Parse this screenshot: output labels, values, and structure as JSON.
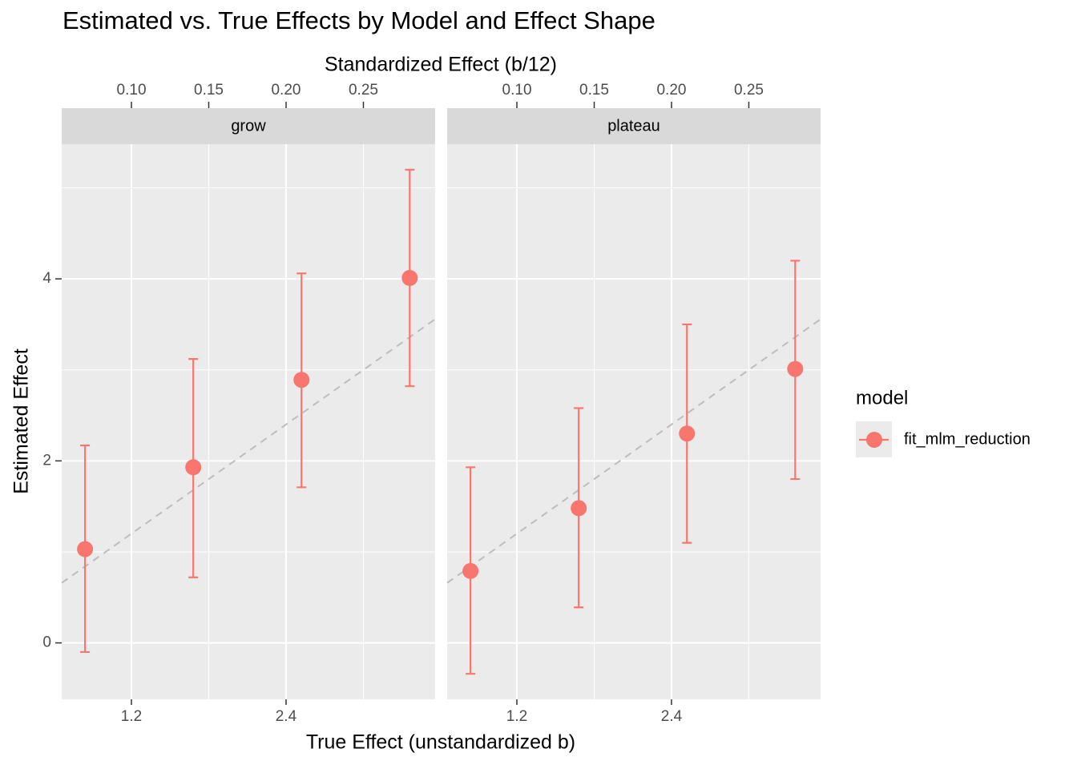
{
  "chart_data": {
    "type": "errorbar",
    "title": "Estimated vs. True Effects by Model and Effect Shape",
    "x_label": "True Effect (unstandardized b)",
    "x2_label": "Standardized Effect (b/12)",
    "y_label": "Estimated Effect",
    "legend_title": "model",
    "series": [
      {
        "name": "fit_mlm_reduction",
        "color": "#f8766d"
      }
    ],
    "xlim": [
      0.659,
      3.557
    ],
    "xticks": [
      1.2,
      2.4
    ],
    "xminor": [
      1.8,
      3.0
    ],
    "x2lim": [
      0.0549,
      0.2964
    ],
    "x2ticks": [
      {
        "value": 0.1,
        "label": "0.10"
      },
      0.15,
      {
        "value": 0.2,
        "label": "0.20"
      },
      0.25
    ],
    "ylim": [
      -0.62,
      5.48
    ],
    "yticks": [
      0,
      2,
      4
    ],
    "yminor": [
      1,
      3,
      5
    ],
    "grid": true,
    "identity_line": true,
    "facets": [
      {
        "label": "grow",
        "x": [
          0.84,
          1.68,
          2.52,
          3.36
        ],
        "values": [
          1.03,
          1.93,
          2.89,
          4.01
        ],
        "lower": [
          -0.1,
          0.72,
          1.71,
          2.82
        ],
        "upper": [
          2.17,
          3.12,
          4.06,
          5.2
        ]
      },
      {
        "label": "plateau",
        "x": [
          0.84,
          1.68,
          2.52,
          3.36
        ],
        "values": [
          0.79,
          1.48,
          2.3,
          3.01
        ],
        "lower": [
          -0.34,
          0.39,
          1.1,
          1.8
        ],
        "upper": [
          1.93,
          2.58,
          3.5,
          4.2
        ]
      }
    ]
  }
}
